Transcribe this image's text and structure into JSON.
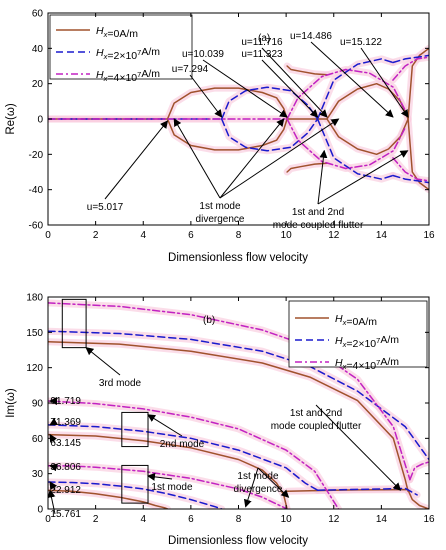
{
  "chart_data": [
    {
      "type": "line",
      "panel_label": "(a)",
      "xlabel": "Dimensionless flow velocity",
      "ylabel": "Re(ω)",
      "xlim": [
        0,
        16
      ],
      "ylim": [
        -60,
        60
      ],
      "xticks": [
        0,
        2,
        4,
        6,
        8,
        10,
        12,
        14,
        16
      ],
      "yticks": [
        -60,
        -40,
        -20,
        0,
        20,
        40,
        60
      ],
      "grid": false,
      "legend_position": "top-left",
      "colors": {
        "s0": "#a0522d",
        "s1": "#1a1acd",
        "s2": "#c222c2",
        "glow": "#f9cfe0"
      },
      "series": [
        {
          "name": "H_x=0A/m",
          "style": "solid",
          "branches": [
            {
              "x": [
                0,
                5.017
              ],
              "y": [
                0,
                0
              ]
            },
            {
              "x": [
                5.017,
                5.3,
                6,
                7,
                8,
                9,
                9.6,
                9.9,
                10.039
              ],
              "y": [
                0,
                9,
                15,
                17.5,
                17.5,
                15,
                12,
                6,
                0
              ]
            },
            {
              "x": [
                5.017,
                5.3,
                6,
                7,
                8,
                9,
                9.6,
                9.9,
                10.039
              ],
              "y": [
                0,
                -9,
                -15,
                -17.5,
                -17.5,
                -15,
                -12,
                -6,
                0
              ]
            },
            {
              "x": [
                10.039,
                11.716
              ],
              "y": [
                0,
                0
              ]
            },
            {
              "x": [
                10.039,
                10.2,
                10.6,
                11.2,
                11.716
              ],
              "y": [
                30,
                28,
                27,
                25.5,
                25
              ]
            },
            {
              "x": [
                10.039,
                10.2,
                10.6,
                11.2,
                11.716
              ],
              "y": [
                -30,
                -28,
                -27,
                -25.5,
                -25
              ]
            },
            {
              "x": [
                11.716,
                12.2,
                13,
                13.8,
                14.3,
                14.8,
                15.122
              ],
              "y": [
                0,
                10,
                17,
                20,
                17,
                10,
                0
              ]
            },
            {
              "x": [
                11.716,
                12.2,
                13,
                13.8,
                14.3,
                14.8,
                15.122
              ],
              "y": [
                0,
                -10,
                -17,
                -20,
                -17,
                -10,
                0
              ]
            },
            {
              "x": [
                15.122,
                15.3,
                15.6,
                16
              ],
              "y": [
                0,
                30,
                36,
                40
              ]
            },
            {
              "x": [
                15.122,
                15.3,
                15.6,
                16
              ],
              "y": [
                0,
                -30,
                -36,
                -40
              ]
            }
          ]
        },
        {
          "name": "H_x=2×10^7A/m",
          "style": "dashed",
          "branches": [
            {
              "x": [
                0,
                7.294
              ],
              "y": [
                0,
                0
              ]
            },
            {
              "x": [
                7.294,
                7.6,
                8.3,
                9.2,
                10.2,
                10.9,
                11.323
              ],
              "y": [
                0,
                10,
                16,
                18,
                16,
                8,
                0
              ]
            },
            {
              "x": [
                7.294,
                7.6,
                8.3,
                9.2,
                10.2,
                10.9,
                11.323
              ],
              "y": [
                0,
                -10,
                -16,
                -18,
                -16,
                -8,
                0
              ]
            },
            {
              "x": [
                11.323,
                12,
                13,
                14,
                14.486
              ],
              "y": [
                0,
                22,
                31,
                34,
                32
              ]
            },
            {
              "x": [
                11.323,
                12,
                13,
                14,
                14.486
              ],
              "y": [
                0,
                -22,
                -31,
                -34,
                -32
              ]
            },
            {
              "x": [
                14.486,
                15,
                15.5,
                16
              ],
              "y": [
                32,
                34,
                35,
                36
              ]
            },
            {
              "x": [
                14.486,
                15,
                15.5,
                16
              ],
              "y": [
                -32,
                -34,
                -35,
                -36
              ]
            }
          ]
        },
        {
          "name": "H_x=4×10^7A/m",
          "style": "dashdot",
          "branches": [
            {
              "x": [
                0,
                10.039
              ],
              "y": [
                0,
                0
              ]
            },
            {
              "x": [
                10.039,
                10.5,
                11.5,
                12.5,
                13.5,
                14.5,
                15.0
              ],
              "y": [
                0,
                12,
                24,
                28,
                26,
                18,
                5
              ]
            },
            {
              "x": [
                10.039,
                10.5,
                11.5,
                12.5,
                13.5,
                14.5,
                15.0
              ],
              "y": [
                0,
                -12,
                -24,
                -28,
                -26,
                -18,
                -5
              ]
            },
            {
              "x": [
                14.486,
                15,
                15.5,
                16
              ],
              "y": [
                22,
                30,
                34,
                35
              ]
            },
            {
              "x": [
                14.486,
                15,
                15.5,
                16
              ],
              "y": [
                -22,
                -30,
                -34,
                -35
              ]
            }
          ]
        }
      ],
      "value_labels": [
        {
          "text": "u=5.017",
          "x": 5.017,
          "y": 0
        },
        {
          "text": "u=7.294",
          "x": 7.294,
          "y": 0
        },
        {
          "text": "u=10.039",
          "x": 10.039,
          "y": 0
        },
        {
          "text": "u=11.323",
          "x": 11.323,
          "y": 0
        },
        {
          "text": "u=11.716",
          "x": 11.716,
          "y": 0
        },
        {
          "text": "u=14.486",
          "x": 14.486,
          "y": 0
        },
        {
          "text": "u=15.122",
          "x": 15.122,
          "y": 0
        }
      ],
      "annotations": [
        {
          "lines": [
            "1st mode",
            "divergence"
          ],
          "x": 7.2,
          "y": -41,
          "arrow_to": [
            [
              5.3,
              0
            ],
            [
              9.9,
              0
            ],
            [
              12.2,
              0
            ]
          ]
        },
        {
          "lines": [
            "1st and 2nd",
            "mode coupled flutter"
          ],
          "x": 12.9,
          "y": -48,
          "arrow_to": [
            [
              11.6,
              -18
            ],
            [
              15.1,
              -18
            ]
          ]
        }
      ]
    },
    {
      "type": "line",
      "panel_label": "(b)",
      "xlabel": "Dimensionless flow velocity",
      "ylabel": "Im(ω)",
      "xlim": [
        0,
        16
      ],
      "ylim": [
        0,
        180
      ],
      "xticks": [
        0,
        2,
        4,
        6,
        8,
        10,
        12,
        14,
        16
      ],
      "yticks": [
        0,
        30,
        60,
        90,
        120,
        150,
        180
      ],
      "grid": false,
      "legend_position": "top-right",
      "series": [
        {
          "name": "H_x=0A/m",
          "style": "solid",
          "branches": [
            {
              "x": [
                0,
                3,
                6,
                9,
                11,
                13,
                14.5,
                15.0,
                15.122
              ],
              "y": [
                142,
                140,
                134,
                124,
                112,
                92,
                60,
                25,
                15
              ]
            },
            {
              "x": [
                0,
                2,
                4,
                6,
                8,
                9,
                9.6,
                9.9,
                10.039
              ],
              "y": [
                63.145,
                62,
                58,
                52,
                42,
                33,
                22,
                12,
                0
              ]
            },
            {
              "x": [
                10.039,
                11,
                12,
                13,
                14,
                15.122
              ],
              "y": [
                15,
                15.5,
                16,
                16.2,
                16.4,
                16.5
              ]
            },
            {
              "x": [
                0,
                1,
                2,
                3,
                4,
                4.5,
                4.9,
                5.017
              ],
              "y": [
                15.761,
                15,
                13,
                10,
                6,
                3,
                1,
                0
              ]
            },
            {
              "x": [
                15.122,
                15.3,
                15.6,
                16
              ],
              "y": [
                16,
                8,
                3,
                0
              ]
            }
          ]
        },
        {
          "name": "H_x=2×10^7A/m",
          "style": "dashed",
          "branches": [
            {
              "x": [
                0,
                3,
                6,
                9,
                11,
                13,
                15,
                16
              ],
              "y": [
                151,
                149,
                144,
                134,
                121,
                100,
                70,
                42
              ]
            },
            {
              "x": [
                0,
                2,
                4,
                6,
                8,
                10,
                10.8,
                11.323
              ],
              "y": [
                71.369,
                70,
                66,
                60,
                50,
                35,
                22,
                16
              ]
            },
            {
              "x": [
                0,
                1,
                2,
                3,
                4,
                5,
                6,
                7,
                7.294
              ],
              "y": [
                22.912,
                22.5,
                21.5,
                19.5,
                17,
                13,
                8,
                2,
                0
              ]
            },
            {
              "x": [
                11.323,
                12.5,
                14,
                15.0,
                15.5
              ],
              "y": [
                16,
                16.5,
                17,
                17.5,
                12
              ]
            }
          ]
        },
        {
          "name": "H_x=4×10^7A/m",
          "style": "dashdot",
          "branches": [
            {
              "x": [
                0,
                3,
                6,
                9,
                11,
                13,
                14.5,
                15.2
              ],
              "y": [
                175,
                172,
                165,
                152,
                138,
                110,
                70,
                25
              ]
            },
            {
              "x": [
                0,
                2,
                4,
                6,
                8,
                10,
                11.2,
                12.2
              ],
              "y": [
                91.719,
                89.5,
                85,
                78,
                68,
                50,
                32,
                0
              ]
            },
            {
              "x": [
                0,
                1,
                2,
                4,
                6,
                8,
                9,
                10.039
              ],
              "y": [
                36.806,
                36.5,
                35.5,
                32,
                26,
                17,
                10,
                0
              ]
            },
            {
              "x": [
                15.2,
                15.4,
                15.7,
                16
              ],
              "y": [
                25,
                35,
                38,
                40
              ]
            }
          ]
        }
      ],
      "value_labels": [
        {
          "text": "91.719",
          "x": 0,
          "y": 91.719
        },
        {
          "text": "71.369",
          "x": 0,
          "y": 71.369
        },
        {
          "text": "63.145",
          "x": 0,
          "y": 63.145
        },
        {
          "text": "36.806",
          "x": 0,
          "y": 36.806
        },
        {
          "text": "22.912",
          "x": 0,
          "y": 22.912
        },
        {
          "text": "15.761",
          "x": 0,
          "y": 15.761
        }
      ],
      "boxes": [
        {
          "x": [
            0.6,
            1.6
          ],
          "y": [
            137,
            178
          ]
        },
        {
          "x": [
            3.1,
            4.2
          ],
          "y": [
            53,
            82
          ]
        },
        {
          "x": [
            3.1,
            4.2
          ],
          "y": [
            5,
            37
          ]
        }
      ],
      "annotations": [
        {
          "lines": [
            "3rd mode"
          ],
          "x": 3.2,
          "y": 122,
          "arrow_to": [
            [
              1.6,
              137
            ]
          ]
        },
        {
          "lines": [
            "2nd mode"
          ],
          "x": 5.6,
          "y": 92,
          "arrow_to": [
            [
              4.2,
              80
            ]
          ]
        },
        {
          "lines": [
            "1st mode"
          ],
          "x": 5.4,
          "y": 38,
          "arrow_to": [
            [
              4.2,
              28
            ]
          ]
        },
        {
          "lines": [
            "1st mode",
            "divergence"
          ],
          "x": 11.6,
          "y": 56,
          "arrow_to": [
            [
              8.3,
              2
            ],
            [
              10.1,
              10
            ]
          ]
        },
        {
          "lines": [
            "1st and 2nd",
            "mode coupled flutter"
          ],
          "x": 12.6,
          "y": 116,
          "arrow_to": [
            [
              14.8,
              16
            ]
          ]
        }
      ]
    }
  ]
}
